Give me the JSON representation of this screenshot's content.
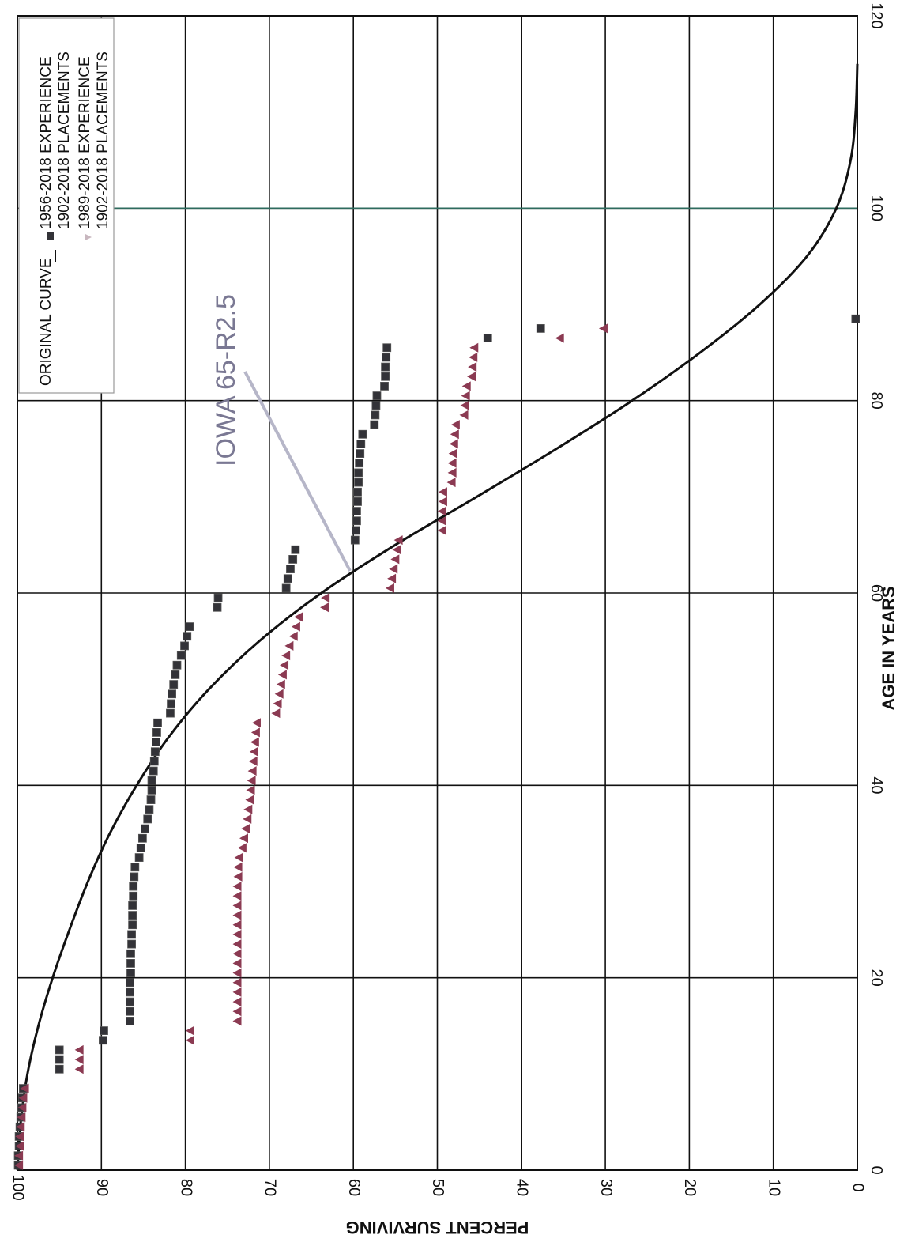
{
  "chart_data": {
    "type": "scatter",
    "rotated": "90deg clockwise (age axis vertical, percent axis horizontal)",
    "xlabel": "AGE IN YEARS",
    "ylabel": "PERCENT SURVIVING",
    "xlim": [
      0,
      120
    ],
    "ylim": [
      0,
      100
    ],
    "x_ticks": [
      0,
      20,
      40,
      60,
      80,
      100,
      120
    ],
    "y_ticks": [
      0,
      10,
      20,
      30,
      40,
      50,
      60,
      70,
      80,
      90,
      100
    ],
    "grid": true,
    "legend_position": "top-left of page (rotated)",
    "legend": {
      "curve": "ORIGINAL CURVE",
      "series1_line1": "1956-2018 EXPERIENCE",
      "series1_line2": "1902-2018 PLACEMENTS",
      "series2_line1": "1989-2018 EXPERIENCE",
      "series2_line2": "1902-2018 PLACEMENTS"
    },
    "annotation": "IOWA 65-R2.5",
    "curve": {
      "name": "ORIGINAL CURVE",
      "color": "#111111",
      "points": [
        [
          0,
          100
        ],
        [
          5,
          99.6
        ],
        [
          10,
          98.8
        ],
        [
          15,
          97.5
        ],
        [
          20,
          95.8
        ],
        [
          25,
          93.8
        ],
        [
          30,
          91.6
        ],
        [
          35,
          89
        ],
        [
          40,
          85.8
        ],
        [
          45,
          82
        ],
        [
          50,
          77.2
        ],
        [
          55,
          71.2
        ],
        [
          60,
          63.8
        ],
        [
          65,
          55
        ],
        [
          70,
          45.3
        ],
        [
          75,
          35.8
        ],
        [
          80,
          26.8
        ],
        [
          85,
          18.7
        ],
        [
          90,
          11.6
        ],
        [
          95,
          6
        ],
        [
          100,
          2.5
        ],
        [
          105,
          0.8
        ],
        [
          110,
          0.2
        ],
        [
          115,
          0
        ]
      ]
    },
    "series": [
      {
        "legend_lines": [
          "1956-2018 EXPERIENCE",
          "1902-2018 PLACEMENTS"
        ],
        "marker": "square",
        "color": "#333338",
        "points": [
          [
            0.5,
            99.9
          ],
          [
            1.5,
            99.9
          ],
          [
            2.5,
            99.8
          ],
          [
            3.5,
            99.8
          ],
          [
            4.5,
            99.7
          ],
          [
            5.5,
            99.6
          ],
          [
            6.5,
            99.5
          ],
          [
            7.5,
            99.4
          ],
          [
            8.5,
            99.3
          ],
          [
            10.5,
            95
          ],
          [
            11.5,
            95
          ],
          [
            12.5,
            95
          ],
          [
            13.5,
            89.8
          ],
          [
            14.5,
            89.7
          ],
          [
            15.5,
            86.6
          ],
          [
            16.5,
            86.6
          ],
          [
            17.5,
            86.6
          ],
          [
            18.5,
            86.6
          ],
          [
            19.5,
            86.6
          ],
          [
            20.5,
            86.5
          ],
          [
            21.5,
            86.5
          ],
          [
            22.5,
            86.5
          ],
          [
            23.5,
            86.4
          ],
          [
            24.5,
            86.4
          ],
          [
            25.5,
            86.3
          ],
          [
            26.5,
            86.3
          ],
          [
            27.5,
            86.3
          ],
          [
            28.5,
            86.2
          ],
          [
            29.5,
            86.2
          ],
          [
            30.5,
            86.1
          ],
          [
            31.5,
            86
          ],
          [
            32.5,
            85.5
          ],
          [
            33.5,
            85.3
          ],
          [
            34.5,
            85.1
          ],
          [
            35.5,
            84.8
          ],
          [
            36.5,
            84.5
          ],
          [
            37.5,
            84.3
          ],
          [
            38.5,
            84.1
          ],
          [
            39.5,
            84
          ],
          [
            40.5,
            84
          ],
          [
            41.5,
            83.8
          ],
          [
            42.5,
            83.7
          ],
          [
            43.5,
            83.6
          ],
          [
            44.5,
            83.5
          ],
          [
            45.5,
            83.4
          ],
          [
            46.5,
            83.3
          ],
          [
            47.5,
            81.8
          ],
          [
            48.5,
            81.7
          ],
          [
            49.5,
            81.6
          ],
          [
            50.5,
            81.4
          ],
          [
            51.5,
            81.2
          ],
          [
            52.5,
            81
          ],
          [
            53.5,
            80.5
          ],
          [
            54.5,
            80.1
          ],
          [
            55.5,
            79.8
          ],
          [
            56.5,
            79.5
          ],
          [
            58.5,
            76.2
          ],
          [
            59.5,
            76.1
          ],
          [
            60.5,
            68
          ],
          [
            61.5,
            67.8
          ],
          [
            62.5,
            67.5
          ],
          [
            63.5,
            67.2
          ],
          [
            64.5,
            66.9
          ],
          [
            65.5,
            59.8
          ],
          [
            66.5,
            59.7
          ],
          [
            67.5,
            59.6
          ],
          [
            68.5,
            59.6
          ],
          [
            69.5,
            59.5
          ],
          [
            70.5,
            59.5
          ],
          [
            71.5,
            59.4
          ],
          [
            72.5,
            59.4
          ],
          [
            73.5,
            59.3
          ],
          [
            74.5,
            59.2
          ],
          [
            75.5,
            59.1
          ],
          [
            76.5,
            58.9
          ],
          [
            77.5,
            57.5
          ],
          [
            78.5,
            57.4
          ],
          [
            79.5,
            57.3
          ],
          [
            80.5,
            57.2
          ],
          [
            81.5,
            56.3
          ],
          [
            82.5,
            56.2
          ],
          [
            83.5,
            56.2
          ],
          [
            84.5,
            56.1
          ],
          [
            85.5,
            56
          ],
          [
            86.5,
            44
          ],
          [
            87.5,
            37.7
          ],
          [
            88.5,
            0.2
          ]
        ]
      },
      {
        "legend_lines": [
          "1989-2018 EXPERIENCE",
          "1902-2018 PLACEMENTS"
        ],
        "marker": "triangle",
        "color": "#8b3a52",
        "points": [
          [
            0.5,
            99.8
          ],
          [
            1.5,
            99.8
          ],
          [
            2.5,
            99.7
          ],
          [
            3.5,
            99.7
          ],
          [
            4.5,
            99.6
          ],
          [
            5.5,
            99.5
          ],
          [
            6.5,
            99.4
          ],
          [
            7.5,
            99.3
          ],
          [
            8.5,
            99.1
          ],
          [
            10.5,
            92.6
          ],
          [
            11.5,
            92.6
          ],
          [
            12.5,
            92.6
          ],
          [
            13.5,
            79.4
          ],
          [
            14.5,
            79.4
          ],
          [
            15.5,
            73.8
          ],
          [
            16.5,
            73.8
          ],
          [
            17.5,
            73.8
          ],
          [
            18.5,
            73.8
          ],
          [
            19.5,
            73.8
          ],
          [
            20.5,
            73.8
          ],
          [
            21.5,
            73.8
          ],
          [
            22.5,
            73.8
          ],
          [
            23.5,
            73.8
          ],
          [
            24.5,
            73.8
          ],
          [
            25.5,
            73.8
          ],
          [
            26.5,
            73.8
          ],
          [
            27.5,
            73.8
          ],
          [
            28.5,
            73.8
          ],
          [
            29.5,
            73.8
          ],
          [
            30.5,
            73.7
          ],
          [
            31.5,
            73.7
          ],
          [
            32.5,
            73.6
          ],
          [
            33.5,
            73.2
          ],
          [
            34.5,
            73
          ],
          [
            35.5,
            72.8
          ],
          [
            36.5,
            72.6
          ],
          [
            37.5,
            72.5
          ],
          [
            38.5,
            72.3
          ],
          [
            39.5,
            72.2
          ],
          [
            40.5,
            72.1
          ],
          [
            41.5,
            72
          ],
          [
            42.5,
            71.9
          ],
          [
            43.5,
            71.8
          ],
          [
            44.5,
            71.7
          ],
          [
            45.5,
            71.6
          ],
          [
            46.5,
            71.5
          ],
          [
            47.5,
            69.2
          ],
          [
            48.5,
            69
          ],
          [
            49.5,
            68.8
          ],
          [
            50.5,
            68.6
          ],
          [
            51.5,
            68.4
          ],
          [
            52.5,
            68.2
          ],
          [
            53.5,
            68
          ],
          [
            54.5,
            67.6
          ],
          [
            55.5,
            67.1
          ],
          [
            56.5,
            66.8
          ],
          [
            57.5,
            66.5
          ],
          [
            58.5,
            63.4
          ],
          [
            59.5,
            63.3
          ],
          [
            60.5,
            55.6
          ],
          [
            61.5,
            55.4
          ],
          [
            62.5,
            55.2
          ],
          [
            63.5,
            55
          ],
          [
            64.5,
            54.8
          ],
          [
            65.5,
            54.6
          ],
          [
            66.5,
            49.4
          ],
          [
            67.5,
            49.4
          ],
          [
            68.5,
            49.4
          ],
          [
            69.5,
            49.3
          ],
          [
            70.5,
            49.3
          ],
          [
            71.5,
            48.3
          ],
          [
            72.5,
            48.2
          ],
          [
            73.5,
            48.2
          ],
          [
            74.5,
            48.1
          ],
          [
            75.5,
            48
          ],
          [
            76.5,
            47.9
          ],
          [
            77.5,
            47.8
          ],
          [
            78.5,
            46.8
          ],
          [
            79.5,
            46.7
          ],
          [
            80.5,
            46.6
          ],
          [
            81.5,
            46.5
          ],
          [
            82.5,
            45.9
          ],
          [
            83.5,
            45.8
          ],
          [
            84.5,
            45.7
          ],
          [
            85.5,
            45.6
          ],
          [
            86.5,
            35.4
          ],
          [
            87.5,
            30.2
          ]
        ]
      }
    ]
  }
}
